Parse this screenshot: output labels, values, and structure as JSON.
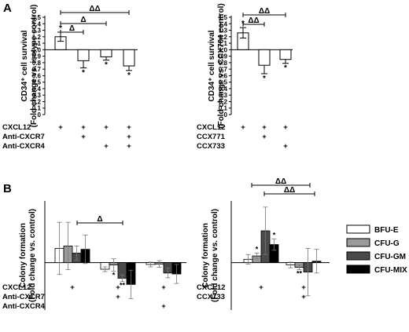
{
  "panels": [
    {
      "letter": "A"
    },
    {
      "letter": "B"
    }
  ],
  "chart_data": [
    {
      "id": "A-left",
      "type": "bar",
      "ylabel_lines": [
        "CD34⁺ cell survival",
        "(Fold change vs. isotype control)"
      ],
      "ylim": [
        0,
        1.5
      ],
      "yticks": [
        "0",
        "0.1",
        "0.2",
        "0.3",
        "0.4",
        "0.5",
        "0.6",
        "0.7",
        "0.8",
        "0.9",
        "1.0",
        "1.1",
        "1.2",
        "1.3",
        "1.4",
        "1.5"
      ],
      "baseline": 1.0,
      "categories": [
        "1",
        "2",
        "3",
        "4"
      ],
      "values": [
        1.2,
        0.83,
        0.89,
        0.75
      ],
      "errors": [
        0.07,
        0.11,
        0.05,
        0.07
      ],
      "stars": [
        "*",
        "*",
        "*",
        "*"
      ],
      "brackets": [
        {
          "from": 0,
          "to": 1,
          "label": "Δ"
        },
        {
          "from": 0,
          "to": 2,
          "label": "Δ"
        },
        {
          "from": 0,
          "to": 3,
          "label": "ΔΔ"
        }
      ],
      "treatments": [
        {
          "label": "CXCL12",
          "marks": [
            "+",
            "+",
            "+",
            "+"
          ]
        },
        {
          "label": "Anti-CXCR7",
          "marks": [
            "",
            "+",
            "",
            "+"
          ]
        },
        {
          "label": "Anti-CXCR4",
          "marks": [
            "",
            "",
            "+",
            "+"
          ]
        }
      ]
    },
    {
      "id": "A-right",
      "type": "bar",
      "ylabel_lines": [
        "CD34⁺ cell survival",
        "(Fold change vs. CCX704 control)"
      ],
      "ylim": [
        0,
        1.5
      ],
      "yticks": [
        "0",
        "0.1",
        "0.2",
        "0.3",
        "0.4",
        "0.5",
        "0.6",
        "0.7",
        "0.8",
        "0.9",
        "1.0",
        "1.1",
        "1.2",
        "1.3",
        "1.4",
        "1.5"
      ],
      "baseline": 1.0,
      "categories": [
        "1",
        "2",
        "3"
      ],
      "values": [
        1.26,
        0.76,
        0.85
      ],
      "errors": [
        0.08,
        0.13,
        0.06
      ],
      "stars": [
        "*",
        "*",
        "*"
      ],
      "brackets": [
        {
          "from": 0,
          "to": 1,
          "label": "ΔΔ"
        },
        {
          "from": 0,
          "to": 2,
          "label": "ΔΔ"
        }
      ],
      "treatments": [
        {
          "label": "CXCL12",
          "marks": [
            "+",
            "+",
            "+"
          ]
        },
        {
          "label": "CCX771",
          "marks": [
            "",
            "+",
            ""
          ]
        },
        {
          "label": "CCX733",
          "marks": [
            "",
            "",
            "+"
          ]
        }
      ]
    },
    {
      "id": "B-left",
      "type": "bar",
      "ylabel_lines": [
        "Colony formation",
        "(Fold change vs. control)"
      ],
      "ylim": [
        0,
        2.3
      ],
      "baseline": 1.0,
      "groups": [
        "1",
        "2",
        "3"
      ],
      "series": [
        {
          "name": "BFU-E",
          "values": [
            1.3,
            0.86,
            0.96
          ],
          "errors": [
            0.55,
            0.05,
            0.05
          ],
          "stars": [
            "",
            "",
            ""
          ]
        },
        {
          "name": "CFU-G",
          "values": [
            1.35,
            0.95,
            0.97
          ],
          "errors": [
            0.5,
            0.13,
            0.07
          ],
          "stars": [
            "",
            "*",
            ""
          ]
        },
        {
          "name": "CFU-GM",
          "values": [
            1.2,
            0.67,
            0.78
          ],
          "errors": [
            0.15,
            0.07,
            0.1
          ],
          "stars": [
            "",
            "**",
            ""
          ]
        },
        {
          "name": "CFU-MIX",
          "values": [
            1.28,
            0.54,
            0.76
          ],
          "errors": [
            0.3,
            0.3,
            0.2
          ],
          "stars": [
            "",
            "",
            ""
          ]
        }
      ],
      "brackets": [
        {
          "from": 0,
          "to": 1,
          "label": "Δ"
        }
      ],
      "treatments": [
        {
          "label": "CXCL12",
          "marks": [
            "+",
            "+",
            "+"
          ]
        },
        {
          "label": "Anti-CXCR7",
          "marks": [
            "",
            "+",
            ""
          ]
        },
        {
          "label": "Anti-CXCR4",
          "marks": [
            "",
            "",
            "+"
          ]
        }
      ]
    },
    {
      "id": "B-right",
      "type": "bar",
      "ylabel_lines": [
        "Colony formation",
        "(Fold change vs. control)"
      ],
      "ylim": [
        0,
        2.3
      ],
      "baseline": 1.0,
      "groups": [
        "1",
        "2"
      ],
      "series": [
        {
          "name": "BFU-E",
          "values": [
            1.07,
            0.95
          ],
          "errors": [
            0.1,
            0.06
          ],
          "stars": [
            "",
            ""
          ]
        },
        {
          "name": "CFU-G",
          "values": [
            1.14,
            0.9
          ],
          "errors": [
            0.06,
            0.05
          ],
          "stars": [
            "*",
            "**"
          ]
        },
        {
          "name": "CFU-GM",
          "values": [
            1.67,
            0.8
          ],
          "errors": [
            0.5,
            0.5
          ],
          "stars": [
            "",
            ""
          ]
        },
        {
          "name": "CFU-MIX",
          "values": [
            1.38,
            1.03
          ],
          "errors": [
            0.12,
            0.25
          ],
          "stars": [
            "*",
            ""
          ]
        }
      ],
      "brackets": [
        {
          "from": 0,
          "to": 1,
          "label": "ΔΔ"
        },
        {
          "from": 0,
          "to": 1,
          "label": "ΔΔ"
        }
      ],
      "treatments": [
        {
          "label": "CXCL12",
          "marks": [
            "+",
            "+"
          ]
        },
        {
          "label": "CCX733",
          "marks": [
            "",
            "+"
          ]
        }
      ]
    }
  ],
  "legend": {
    "entries": [
      {
        "name": "BFU-E",
        "color": "#ffffff"
      },
      {
        "name": "CFU-G",
        "color": "#9a9a9a"
      },
      {
        "name": "CFU-GM",
        "color": "#4a4a4a"
      },
      {
        "name": "CFU-MIX",
        "color": "#000000"
      }
    ]
  }
}
